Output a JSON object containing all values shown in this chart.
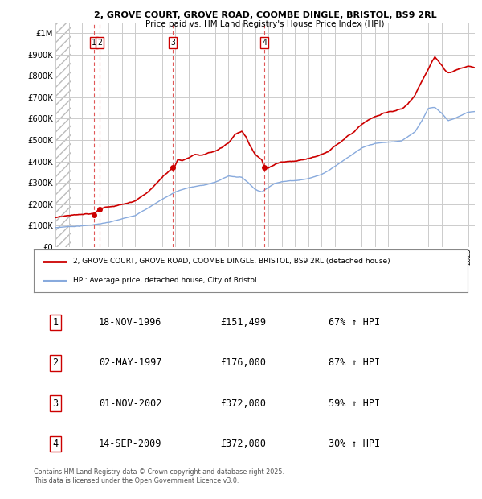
{
  "title_line1": "2, GROVE COURT, GROVE ROAD, COOMBE DINGLE, BRISTOL, BS9 2RL",
  "title_line2": "Price paid vs. HM Land Registry's House Price Index (HPI)",
  "ylim": [
    0,
    1050000
  ],
  "yticks": [
    0,
    100000,
    200000,
    300000,
    400000,
    500000,
    600000,
    700000,
    800000,
    900000,
    1000000
  ],
  "ytick_labels": [
    "£0",
    "£100K",
    "£200K",
    "£300K",
    "£400K",
    "£500K",
    "£600K",
    "£700K",
    "£800K",
    "£900K",
    "£1M"
  ],
  "xlim_start": 1994.0,
  "xlim_end": 2025.5,
  "transaction_dates": [
    1996.88,
    1997.33,
    2002.83,
    2009.71
  ],
  "transaction_prices": [
    151499,
    176000,
    372000,
    372000
  ],
  "transaction_labels": [
    "1",
    "2",
    "3",
    "4"
  ],
  "red_line_color": "#cc0000",
  "blue_line_color": "#88aadd",
  "grid_color": "#cccccc",
  "vline_color": "#dd4444",
  "legend_label_red": "2, GROVE COURT, GROVE ROAD, COOMBE DINGLE, BRISTOL, BS9 2RL (detached house)",
  "legend_label_blue": "HPI: Average price, detached house, City of Bristol",
  "table_entries": [
    [
      "1",
      "18-NOV-1996",
      "£151,499",
      "67% ↑ HPI"
    ],
    [
      "2",
      "02-MAY-1997",
      "£176,000",
      "87% ↑ HPI"
    ],
    [
      "3",
      "01-NOV-2002",
      "£372,000",
      "59% ↑ HPI"
    ],
    [
      "4",
      "14-SEP-2009",
      "£372,000",
      "30% ↑ HPI"
    ]
  ],
  "footer_text": "Contains HM Land Registry data © Crown copyright and database right 2025.\nThis data is licensed under the Open Government Licence v3.0.",
  "bg_color": "#ffffff"
}
